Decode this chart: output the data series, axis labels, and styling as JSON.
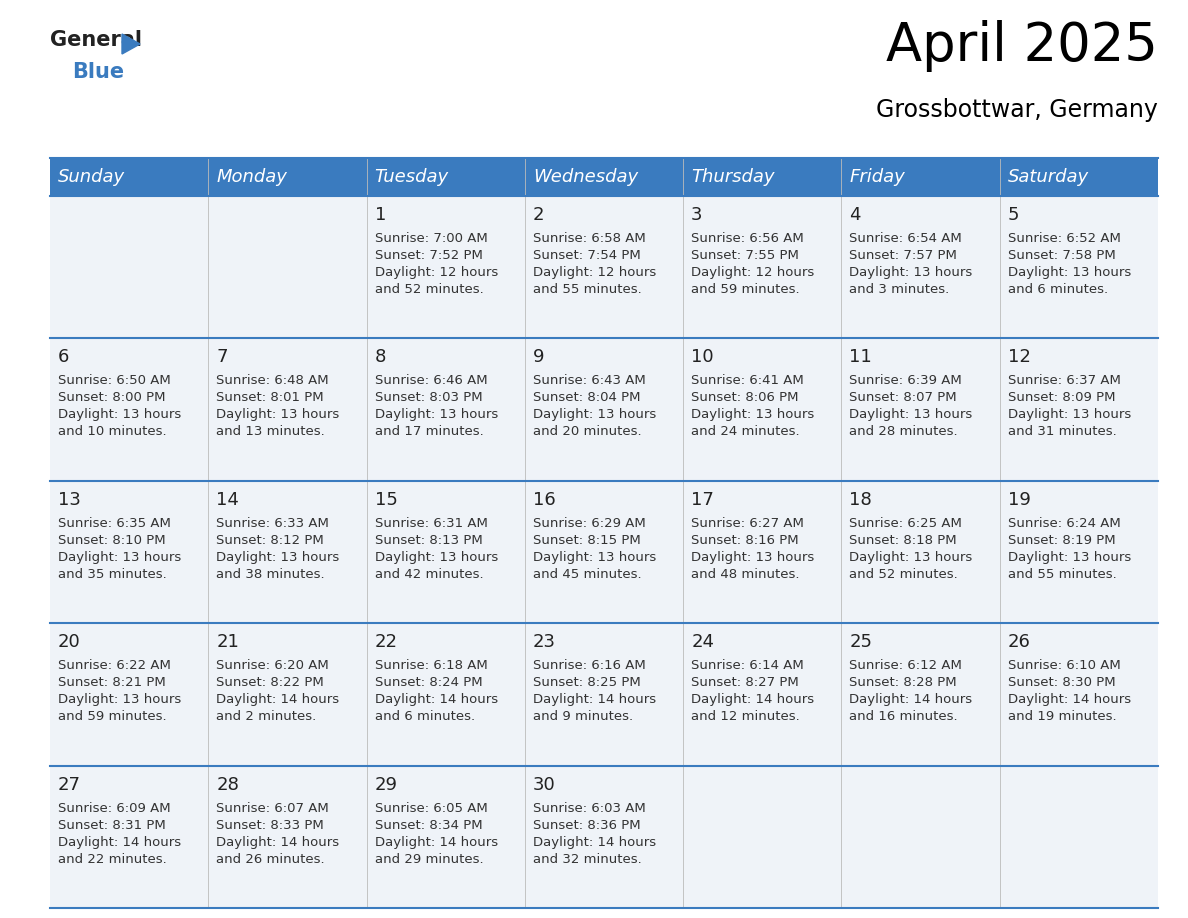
{
  "title": "April 2025",
  "subtitle": "Grossbottwar, Germany",
  "header_bg": "#3a7bbf",
  "header_text": "#ffffff",
  "row_bg": "#eff3f8",
  "separator_color": "#3a7bbf",
  "day_names": [
    "Sunday",
    "Monday",
    "Tuesday",
    "Wednesday",
    "Thursday",
    "Friday",
    "Saturday"
  ],
  "weeks": [
    [
      {
        "day": "",
        "sunrise": "",
        "sunset": "",
        "daylight1": "",
        "daylight2": ""
      },
      {
        "day": "",
        "sunrise": "",
        "sunset": "",
        "daylight1": "",
        "daylight2": ""
      },
      {
        "day": "1",
        "sunrise": "Sunrise: 7:00 AM",
        "sunset": "Sunset: 7:52 PM",
        "daylight1": "Daylight: 12 hours",
        "daylight2": "and 52 minutes."
      },
      {
        "day": "2",
        "sunrise": "Sunrise: 6:58 AM",
        "sunset": "Sunset: 7:54 PM",
        "daylight1": "Daylight: 12 hours",
        "daylight2": "and 55 minutes."
      },
      {
        "day": "3",
        "sunrise": "Sunrise: 6:56 AM",
        "sunset": "Sunset: 7:55 PM",
        "daylight1": "Daylight: 12 hours",
        "daylight2": "and 59 minutes."
      },
      {
        "day": "4",
        "sunrise": "Sunrise: 6:54 AM",
        "sunset": "Sunset: 7:57 PM",
        "daylight1": "Daylight: 13 hours",
        "daylight2": "and 3 minutes."
      },
      {
        "day": "5",
        "sunrise": "Sunrise: 6:52 AM",
        "sunset": "Sunset: 7:58 PM",
        "daylight1": "Daylight: 13 hours",
        "daylight2": "and 6 minutes."
      }
    ],
    [
      {
        "day": "6",
        "sunrise": "Sunrise: 6:50 AM",
        "sunset": "Sunset: 8:00 PM",
        "daylight1": "Daylight: 13 hours",
        "daylight2": "and 10 minutes."
      },
      {
        "day": "7",
        "sunrise": "Sunrise: 6:48 AM",
        "sunset": "Sunset: 8:01 PM",
        "daylight1": "Daylight: 13 hours",
        "daylight2": "and 13 minutes."
      },
      {
        "day": "8",
        "sunrise": "Sunrise: 6:46 AM",
        "sunset": "Sunset: 8:03 PM",
        "daylight1": "Daylight: 13 hours",
        "daylight2": "and 17 minutes."
      },
      {
        "day": "9",
        "sunrise": "Sunrise: 6:43 AM",
        "sunset": "Sunset: 8:04 PM",
        "daylight1": "Daylight: 13 hours",
        "daylight2": "and 20 minutes."
      },
      {
        "day": "10",
        "sunrise": "Sunrise: 6:41 AM",
        "sunset": "Sunset: 8:06 PM",
        "daylight1": "Daylight: 13 hours",
        "daylight2": "and 24 minutes."
      },
      {
        "day": "11",
        "sunrise": "Sunrise: 6:39 AM",
        "sunset": "Sunset: 8:07 PM",
        "daylight1": "Daylight: 13 hours",
        "daylight2": "and 28 minutes."
      },
      {
        "day": "12",
        "sunrise": "Sunrise: 6:37 AM",
        "sunset": "Sunset: 8:09 PM",
        "daylight1": "Daylight: 13 hours",
        "daylight2": "and 31 minutes."
      }
    ],
    [
      {
        "day": "13",
        "sunrise": "Sunrise: 6:35 AM",
        "sunset": "Sunset: 8:10 PM",
        "daylight1": "Daylight: 13 hours",
        "daylight2": "and 35 minutes."
      },
      {
        "day": "14",
        "sunrise": "Sunrise: 6:33 AM",
        "sunset": "Sunset: 8:12 PM",
        "daylight1": "Daylight: 13 hours",
        "daylight2": "and 38 minutes."
      },
      {
        "day": "15",
        "sunrise": "Sunrise: 6:31 AM",
        "sunset": "Sunset: 8:13 PM",
        "daylight1": "Daylight: 13 hours",
        "daylight2": "and 42 minutes."
      },
      {
        "day": "16",
        "sunrise": "Sunrise: 6:29 AM",
        "sunset": "Sunset: 8:15 PM",
        "daylight1": "Daylight: 13 hours",
        "daylight2": "and 45 minutes."
      },
      {
        "day": "17",
        "sunrise": "Sunrise: 6:27 AM",
        "sunset": "Sunset: 8:16 PM",
        "daylight1": "Daylight: 13 hours",
        "daylight2": "and 48 minutes."
      },
      {
        "day": "18",
        "sunrise": "Sunrise: 6:25 AM",
        "sunset": "Sunset: 8:18 PM",
        "daylight1": "Daylight: 13 hours",
        "daylight2": "and 52 minutes."
      },
      {
        "day": "19",
        "sunrise": "Sunrise: 6:24 AM",
        "sunset": "Sunset: 8:19 PM",
        "daylight1": "Daylight: 13 hours",
        "daylight2": "and 55 minutes."
      }
    ],
    [
      {
        "day": "20",
        "sunrise": "Sunrise: 6:22 AM",
        "sunset": "Sunset: 8:21 PM",
        "daylight1": "Daylight: 13 hours",
        "daylight2": "and 59 minutes."
      },
      {
        "day": "21",
        "sunrise": "Sunrise: 6:20 AM",
        "sunset": "Sunset: 8:22 PM",
        "daylight1": "Daylight: 14 hours",
        "daylight2": "and 2 minutes."
      },
      {
        "day": "22",
        "sunrise": "Sunrise: 6:18 AM",
        "sunset": "Sunset: 8:24 PM",
        "daylight1": "Daylight: 14 hours",
        "daylight2": "and 6 minutes."
      },
      {
        "day": "23",
        "sunrise": "Sunrise: 6:16 AM",
        "sunset": "Sunset: 8:25 PM",
        "daylight1": "Daylight: 14 hours",
        "daylight2": "and 9 minutes."
      },
      {
        "day": "24",
        "sunrise": "Sunrise: 6:14 AM",
        "sunset": "Sunset: 8:27 PM",
        "daylight1": "Daylight: 14 hours",
        "daylight2": "and 12 minutes."
      },
      {
        "day": "25",
        "sunrise": "Sunrise: 6:12 AM",
        "sunset": "Sunset: 8:28 PM",
        "daylight1": "Daylight: 14 hours",
        "daylight2": "and 16 minutes."
      },
      {
        "day": "26",
        "sunrise": "Sunrise: 6:10 AM",
        "sunset": "Sunset: 8:30 PM",
        "daylight1": "Daylight: 14 hours",
        "daylight2": "and 19 minutes."
      }
    ],
    [
      {
        "day": "27",
        "sunrise": "Sunrise: 6:09 AM",
        "sunset": "Sunset: 8:31 PM",
        "daylight1": "Daylight: 14 hours",
        "daylight2": "and 22 minutes."
      },
      {
        "day": "28",
        "sunrise": "Sunrise: 6:07 AM",
        "sunset": "Sunset: 8:33 PM",
        "daylight1": "Daylight: 14 hours",
        "daylight2": "and 26 minutes."
      },
      {
        "day": "29",
        "sunrise": "Sunrise: 6:05 AM",
        "sunset": "Sunset: 8:34 PM",
        "daylight1": "Daylight: 14 hours",
        "daylight2": "and 29 minutes."
      },
      {
        "day": "30",
        "sunrise": "Sunrise: 6:03 AM",
        "sunset": "Sunset: 8:36 PM",
        "daylight1": "Daylight: 14 hours",
        "daylight2": "and 32 minutes."
      },
      {
        "day": "",
        "sunrise": "",
        "sunset": "",
        "daylight1": "",
        "daylight2": ""
      },
      {
        "day": "",
        "sunrise": "",
        "sunset": "",
        "daylight1": "",
        "daylight2": ""
      },
      {
        "day": "",
        "sunrise": "",
        "sunset": "",
        "daylight1": "",
        "daylight2": ""
      }
    ]
  ],
  "title_fontsize": 38,
  "subtitle_fontsize": 17,
  "header_fontsize": 13,
  "day_num_fontsize": 13,
  "cell_text_fontsize": 9.5
}
